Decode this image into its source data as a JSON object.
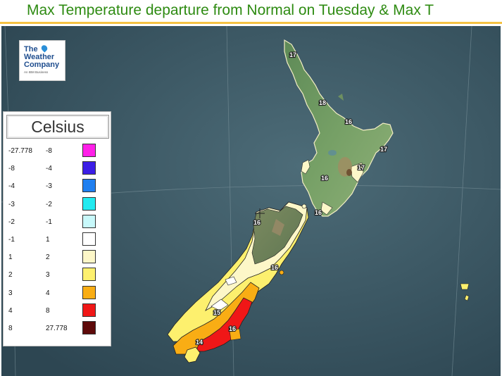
{
  "title": "Max Temperature departure from Normal on Tuesday & Max T",
  "logo": {
    "line1": "The",
    "line2": "Weather",
    "line3": "Company",
    "tagline": "An IBM Business"
  },
  "legend": {
    "title": "Celsius",
    "rows": [
      {
        "low": "-27.778",
        "high": "-8",
        "color": "#ff1fe8"
      },
      {
        "low": "-8",
        "high": "-4",
        "color": "#3c1ee6"
      },
      {
        "low": "-4",
        "high": "-3",
        "color": "#1f7ff0"
      },
      {
        "low": "-3",
        "high": "-2",
        "color": "#22eaf0"
      },
      {
        "low": "-2",
        "high": "-1",
        "color": "#c8f9fb"
      },
      {
        "low": "-1",
        "high": "1",
        "color": "#ffffff"
      },
      {
        "low": "1",
        "high": "2",
        "color": "#fdf7c8"
      },
      {
        "low": "2",
        "high": "3",
        "color": "#fdf06e"
      },
      {
        "low": "3",
        "high": "4",
        "color": "#f9ad14"
      },
      {
        "low": "4",
        "high": "8",
        "color": "#f01717"
      },
      {
        "low": "8",
        "high": "27.778",
        "color": "#5e0a0a"
      }
    ]
  },
  "map_labels": {
    "northland": "17",
    "auckland": "18",
    "bay_of_plenty": "16",
    "east_cape": "17",
    "hawkes_bay": "17",
    "taranaki": "16",
    "wellington": "16",
    "nelson": "16",
    "christchurch": "16",
    "canterbury": "15",
    "dunedin": "16",
    "southland": "14"
  }
}
